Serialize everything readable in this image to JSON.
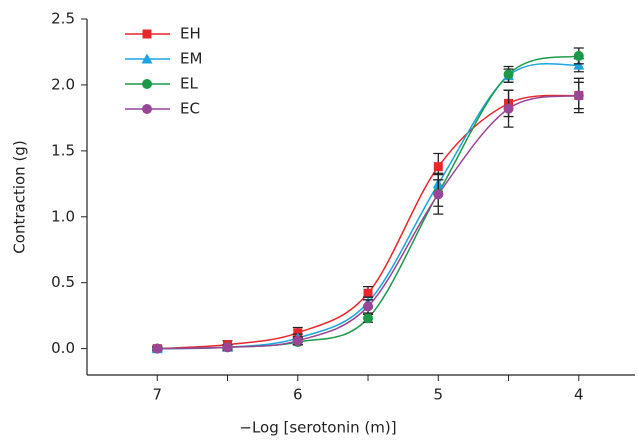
{
  "chart_data": {
    "type": "line",
    "xlabel": "−Log [serotonin (m)]",
    "ylabel": "Contraction (g)",
    "x": [
      7,
      6.5,
      6,
      5.5,
      5,
      4.5,
      4
    ],
    "xlim": [
      7.5,
      3.6
    ],
    "xticks": [
      7,
      6,
      5,
      4
    ],
    "xticks_minor": [
      6.5,
      5.5,
      4.5
    ],
    "ylim": [
      -0.2,
      2.5
    ],
    "yticks": [
      {
        "value": 0,
        "label": "0.0"
      },
      {
        "value": 0.5,
        "label": "0.5"
      },
      {
        "value": 1,
        "label": "1.0"
      },
      {
        "value": 1.5,
        "label": "1.5"
      },
      {
        "value": 2,
        "label": "2.0"
      },
      2.5
    ],
    "legend": "upper left",
    "series": [
      {
        "name": "EH",
        "color": "#e8262c",
        "marker": "square",
        "values": [
          0,
          0.03,
          0.12,
          0.42,
          1.38,
          1.86,
          1.92
        ],
        "errors": [
          0.02,
          0.03,
          0.04,
          0.05,
          0.1,
          0.1,
          0.1
        ]
      },
      {
        "name": "EM",
        "color": "#1aa5e0",
        "marker": "triangle",
        "values": [
          0,
          0.01,
          0.08,
          0.35,
          1.25,
          2.07,
          2.15
        ],
        "errors": [
          0.01,
          0.02,
          0.03,
          0.04,
          0.08,
          0.05,
          0.05
        ]
      },
      {
        "name": "EL",
        "color": "#1a9a48",
        "marker": "circle",
        "values": [
          0,
          0.01,
          0.05,
          0.23,
          1.18,
          2.08,
          2.22
        ],
        "errors": [
          0.01,
          0.02,
          0.02,
          0.03,
          0.1,
          0.06,
          0.06
        ]
      },
      {
        "name": "EC",
        "color": "#9a4596",
        "marker": "circle",
        "values": [
          0,
          0.01,
          0.06,
          0.32,
          1.17,
          1.82,
          1.92
        ],
        "errors": [
          0.01,
          0.02,
          0.03,
          0.05,
          0.15,
          0.14,
          0.13
        ]
      }
    ]
  }
}
